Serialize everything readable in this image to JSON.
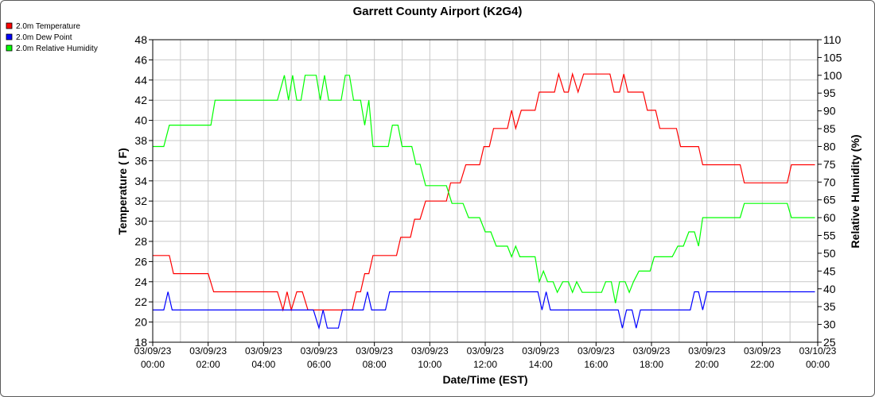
{
  "chart_data": {
    "type": "line",
    "title": "Garrett County Airport (K2G4)",
    "xlabel": "Date/Time (EST)",
    "ylabel_left": "Temperature ( F)",
    "ylabel_right": "Relative Humidity (%)",
    "ylim_left": [
      18,
      48
    ],
    "ylim_right": [
      25,
      110
    ],
    "xlim_hours": [
      0,
      24
    ],
    "grid": true,
    "legend_position": "top-left",
    "x_tick_labels": [
      {
        "date": "03/09/23",
        "time": "00:00"
      },
      {
        "date": "03/09/23",
        "time": "02:00"
      },
      {
        "date": "03/09/23",
        "time": "04:00"
      },
      {
        "date": "03/09/23",
        "time": "06:00"
      },
      {
        "date": "03/09/23",
        "time": "08:00"
      },
      {
        "date": "03/09/23",
        "time": "10:00"
      },
      {
        "date": "03/09/23",
        "time": "12:00"
      },
      {
        "date": "03/09/23",
        "time": "14:00"
      },
      {
        "date": "03/09/23",
        "time": "16:00"
      },
      {
        "date": "03/09/23",
        "time": "18:00"
      },
      {
        "date": "03/09/23",
        "time": "20:00"
      },
      {
        "date": "03/09/23",
        "time": "22:00"
      },
      {
        "date": "03/10/23",
        "time": "00:00"
      }
    ],
    "y_left_ticks": [
      18,
      20,
      22,
      24,
      26,
      28,
      30,
      32,
      34,
      36,
      38,
      40,
      42,
      44,
      46,
      48
    ],
    "y_right_ticks": [
      25,
      30,
      35,
      40,
      45,
      50,
      55,
      60,
      65,
      70,
      75,
      80,
      85,
      90,
      95,
      100,
      105,
      110
    ],
    "series": [
      {
        "name": "2.0m Temperature",
        "color": "#ff0000",
        "axis": "left",
        "points": [
          [
            0.0,
            26.6
          ],
          [
            0.6,
            26.6
          ],
          [
            0.75,
            24.8
          ],
          [
            2.0,
            24.8
          ],
          [
            2.2,
            23.0
          ],
          [
            4.5,
            23.0
          ],
          [
            4.7,
            21.2
          ],
          [
            4.85,
            23.0
          ],
          [
            5.0,
            21.2
          ],
          [
            5.2,
            23.0
          ],
          [
            5.4,
            23.0
          ],
          [
            5.6,
            21.2
          ],
          [
            7.0,
            21.2
          ],
          [
            7.2,
            21.2
          ],
          [
            7.35,
            23.0
          ],
          [
            7.5,
            23.0
          ],
          [
            7.65,
            24.8
          ],
          [
            7.8,
            24.8
          ],
          [
            7.95,
            26.6
          ],
          [
            8.8,
            26.6
          ],
          [
            8.95,
            28.4
          ],
          [
            9.3,
            28.4
          ],
          [
            9.45,
            30.2
          ],
          [
            9.65,
            30.2
          ],
          [
            9.85,
            32.0
          ],
          [
            10.6,
            32.0
          ],
          [
            10.75,
            33.8
          ],
          [
            11.1,
            33.8
          ],
          [
            11.3,
            35.6
          ],
          [
            11.8,
            35.6
          ],
          [
            11.95,
            37.4
          ],
          [
            12.15,
            37.4
          ],
          [
            12.3,
            39.2
          ],
          [
            12.8,
            39.2
          ],
          [
            12.95,
            41.0
          ],
          [
            13.1,
            39.2
          ],
          [
            13.3,
            41.0
          ],
          [
            13.8,
            41.0
          ],
          [
            13.95,
            42.8
          ],
          [
            14.5,
            42.8
          ],
          [
            14.65,
            44.6
          ],
          [
            14.85,
            42.8
          ],
          [
            15.0,
            42.8
          ],
          [
            15.15,
            44.6
          ],
          [
            15.35,
            42.8
          ],
          [
            15.55,
            44.6
          ],
          [
            16.5,
            44.6
          ],
          [
            16.65,
            42.8
          ],
          [
            16.85,
            42.8
          ],
          [
            17.0,
            44.6
          ],
          [
            17.15,
            42.8
          ],
          [
            17.7,
            42.8
          ],
          [
            17.85,
            41.0
          ],
          [
            18.15,
            41.0
          ],
          [
            18.3,
            39.2
          ],
          [
            18.9,
            39.2
          ],
          [
            19.05,
            37.4
          ],
          [
            19.7,
            37.4
          ],
          [
            19.85,
            35.6
          ],
          [
            21.2,
            35.6
          ],
          [
            21.35,
            33.8
          ],
          [
            22.9,
            33.8
          ],
          [
            23.05,
            35.6
          ],
          [
            23.9,
            35.6
          ]
        ]
      },
      {
        "name": "2.0m Dew Point",
        "color": "#0000ff",
        "axis": "left",
        "points": [
          [
            0.0,
            21.2
          ],
          [
            0.4,
            21.2
          ],
          [
            0.55,
            23.0
          ],
          [
            0.7,
            21.2
          ],
          [
            5.8,
            21.2
          ],
          [
            6.0,
            19.4
          ],
          [
            6.15,
            21.2
          ],
          [
            6.3,
            19.4
          ],
          [
            6.7,
            19.4
          ],
          [
            6.85,
            21.2
          ],
          [
            7.6,
            21.2
          ],
          [
            7.75,
            23.0
          ],
          [
            7.9,
            21.2
          ],
          [
            8.4,
            21.2
          ],
          [
            8.55,
            23.0
          ],
          [
            13.9,
            23.0
          ],
          [
            14.05,
            21.2
          ],
          [
            14.2,
            23.0
          ],
          [
            14.35,
            21.2
          ],
          [
            16.8,
            21.2
          ],
          [
            16.95,
            19.4
          ],
          [
            17.1,
            21.2
          ],
          [
            17.3,
            21.2
          ],
          [
            17.45,
            19.4
          ],
          [
            17.6,
            21.2
          ],
          [
            19.4,
            21.2
          ],
          [
            19.55,
            23.0
          ],
          [
            19.7,
            23.0
          ],
          [
            19.85,
            21.2
          ],
          [
            20.0,
            23.0
          ],
          [
            23.9,
            23.0
          ]
        ]
      },
      {
        "name": "2.0m Relative Humidity",
        "color": "#00ff00",
        "axis": "right",
        "points": [
          [
            0.0,
            80
          ],
          [
            0.4,
            80
          ],
          [
            0.6,
            86
          ],
          [
            2.1,
            86
          ],
          [
            2.25,
            93
          ],
          [
            4.5,
            93
          ],
          [
            4.75,
            100
          ],
          [
            4.9,
            93
          ],
          [
            5.05,
            100
          ],
          [
            5.2,
            93
          ],
          [
            5.35,
            93
          ],
          [
            5.5,
            100
          ],
          [
            5.9,
            100
          ],
          [
            6.05,
            93
          ],
          [
            6.2,
            100
          ],
          [
            6.35,
            93
          ],
          [
            6.8,
            93
          ],
          [
            6.95,
            100
          ],
          [
            7.1,
            100
          ],
          [
            7.25,
            93
          ],
          [
            7.5,
            93
          ],
          [
            7.65,
            86
          ],
          [
            7.8,
            93
          ],
          [
            7.95,
            80
          ],
          [
            8.5,
            80
          ],
          [
            8.65,
            86
          ],
          [
            8.85,
            86
          ],
          [
            9.0,
            80
          ],
          [
            9.35,
            80
          ],
          [
            9.5,
            75
          ],
          [
            9.65,
            75
          ],
          [
            9.85,
            69
          ],
          [
            10.6,
            69
          ],
          [
            10.8,
            64
          ],
          [
            11.2,
            64
          ],
          [
            11.4,
            60
          ],
          [
            11.8,
            60
          ],
          [
            12.0,
            56
          ],
          [
            12.2,
            56
          ],
          [
            12.4,
            52
          ],
          [
            12.8,
            52
          ],
          [
            12.95,
            49
          ],
          [
            13.1,
            52
          ],
          [
            13.25,
            49
          ],
          [
            13.8,
            49
          ],
          [
            13.95,
            42
          ],
          [
            14.1,
            45
          ],
          [
            14.25,
            42
          ],
          [
            14.45,
            42
          ],
          [
            14.6,
            39
          ],
          [
            14.8,
            42
          ],
          [
            15.0,
            42
          ],
          [
            15.15,
            39
          ],
          [
            15.3,
            42
          ],
          [
            15.5,
            39
          ],
          [
            16.2,
            39
          ],
          [
            16.35,
            42
          ],
          [
            16.55,
            42
          ],
          [
            16.7,
            36
          ],
          [
            16.85,
            42
          ],
          [
            17.05,
            42
          ],
          [
            17.2,
            39
          ],
          [
            17.35,
            42
          ],
          [
            17.55,
            45
          ],
          [
            17.95,
            45
          ],
          [
            18.1,
            49
          ],
          [
            18.75,
            49
          ],
          [
            18.95,
            52
          ],
          [
            19.15,
            52
          ],
          [
            19.35,
            56
          ],
          [
            19.55,
            56
          ],
          [
            19.7,
            52
          ],
          [
            19.85,
            60
          ],
          [
            21.2,
            60
          ],
          [
            21.35,
            64
          ],
          [
            22.9,
            64
          ],
          [
            23.05,
            60
          ],
          [
            23.9,
            60
          ]
        ]
      }
    ]
  }
}
